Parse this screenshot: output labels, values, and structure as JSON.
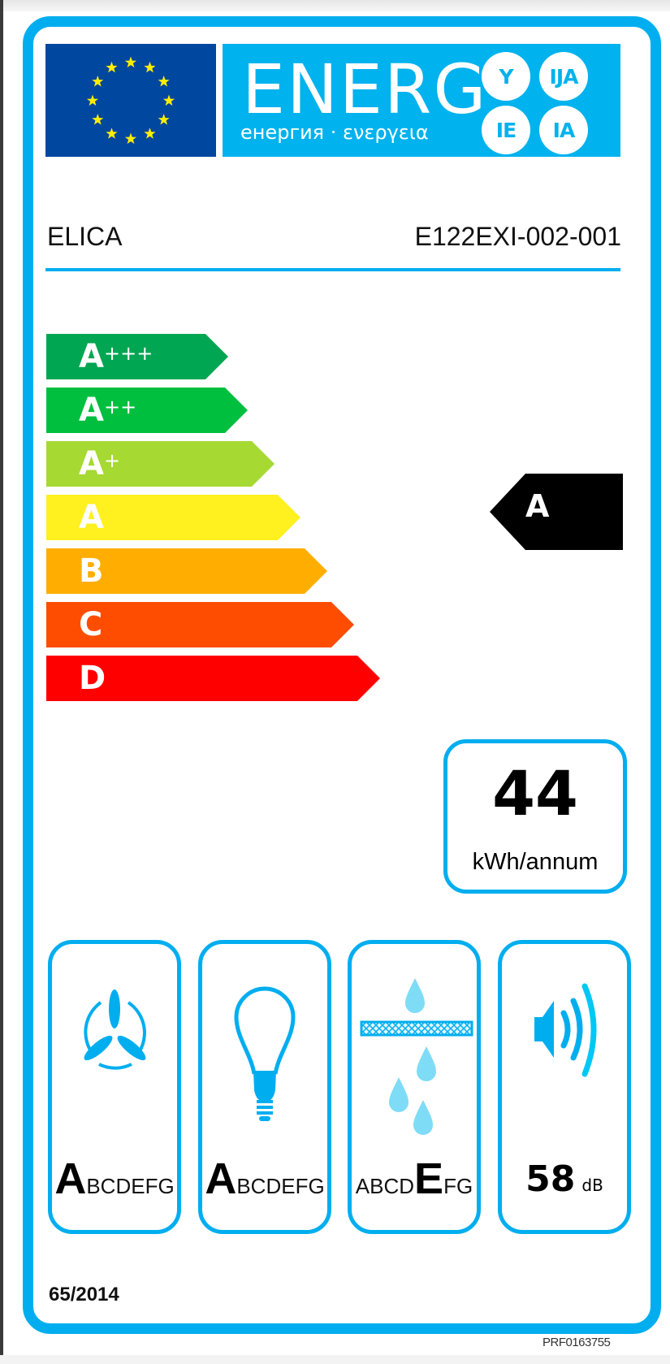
{
  "header": {
    "energy_word": "ENERG",
    "energy_subtitle": "енергия · ενεργεια",
    "language_suffixes": [
      "Y",
      "IJA",
      "IE",
      "IA"
    ],
    "flag_icon": "eu-flag-icon"
  },
  "supplier": {
    "brand": "ELICA",
    "model": "E122EXI-002-001"
  },
  "efficiency_scale": {
    "classes": [
      {
        "letter": "A",
        "plus": "+++",
        "color": "#00a651"
      },
      {
        "letter": "A",
        "plus": "++",
        "color": "#00bf3f"
      },
      {
        "letter": "A",
        "plus": "+",
        "color": "#a6d932"
      },
      {
        "letter": "A",
        "plus": "",
        "color": "#fff01f"
      },
      {
        "letter": "B",
        "plus": "",
        "color": "#ffae00"
      },
      {
        "letter": "C",
        "plus": "",
        "color": "#ff4d00"
      },
      {
        "letter": "D",
        "plus": "",
        "color": "#ff0000"
      }
    ],
    "selected_class": "A",
    "indicator_color": "#000000"
  },
  "consumption": {
    "value": "44",
    "unit": "kWh/annum"
  },
  "pictograms": [
    {
      "icon": "fan-icon",
      "selected": "A",
      "rest": "BCDEFG",
      "before": ""
    },
    {
      "icon": "light-bulb-icon",
      "selected": "A",
      "rest": "BCDEFG",
      "before": ""
    },
    {
      "icon": "grease-filter-icon",
      "selected": "E",
      "rest": "FG",
      "before": "ABCD"
    },
    {
      "icon": "speaker-noise-icon",
      "value": "58",
      "unit": "dB"
    }
  ],
  "footer": {
    "regulation": "65/2014",
    "code": "PRF0163755"
  },
  "colors": {
    "frame": "#00aeef",
    "flag_blue": "#0047a0",
    "star_yellow": "#ffed00"
  }
}
